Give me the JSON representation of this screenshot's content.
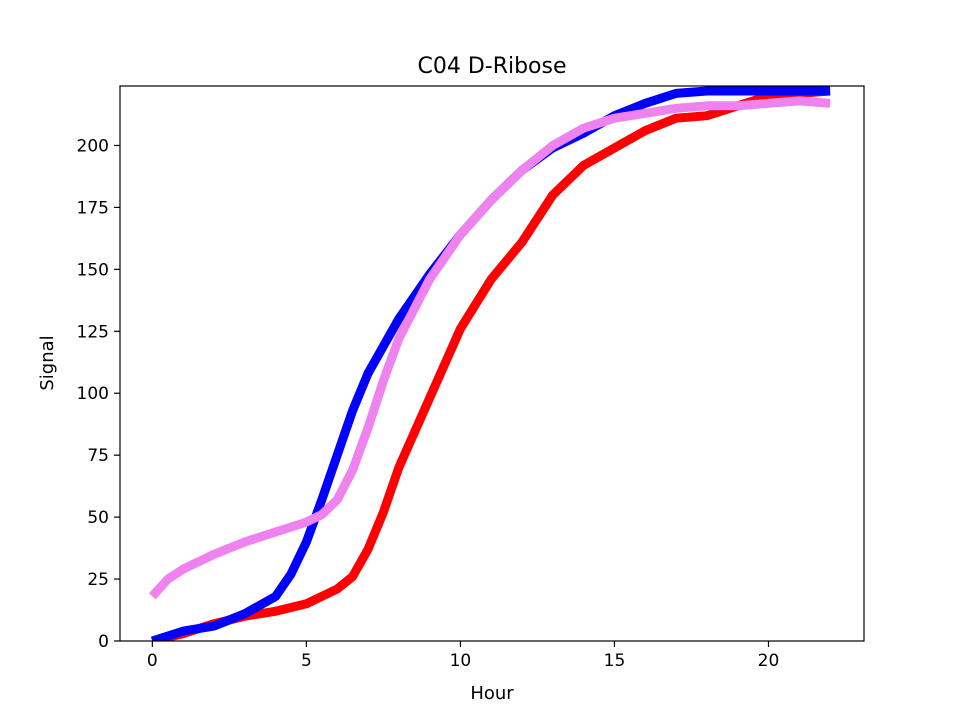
{
  "chart_data": {
    "type": "line",
    "title": "C04 D-Ribose",
    "xlabel": "Hour",
    "ylabel": "Signal",
    "xlim": [
      -1.05,
      23.1
    ],
    "ylim": [
      0,
      224
    ],
    "xticks": [
      0,
      5,
      10,
      15,
      20
    ],
    "yticks": [
      0,
      25,
      50,
      75,
      100,
      125,
      150,
      175,
      200
    ],
    "grid": false,
    "legend": "none",
    "series": [
      {
        "color": "#ff0000",
        "x": [
          0,
          1,
          2,
          3,
          4,
          5,
          6,
          6.5,
          7,
          7.5,
          8,
          9,
          10,
          11,
          12,
          13,
          14,
          15,
          16,
          17,
          18,
          19,
          20,
          21,
          22
        ],
        "y": [
          0,
          3,
          7,
          10,
          12,
          15,
          21,
          26,
          37,
          52,
          70,
          98,
          126,
          146,
          161,
          180,
          192,
          199,
          206,
          211,
          212,
          216,
          220,
          221,
          222
        ]
      },
      {
        "color": "#0000ff",
        "x": [
          0,
          1,
          2,
          3,
          4,
          4.5,
          5,
          5.5,
          6,
          6.5,
          7,
          8,
          9,
          10,
          11,
          12,
          13,
          14,
          15,
          16,
          17,
          18,
          19,
          20,
          21,
          22
        ],
        "y": [
          0,
          4,
          6,
          11,
          18,
          27,
          40,
          57,
          75,
          93,
          108,
          130,
          148,
          164,
          178,
          190,
          199,
          205,
          212,
          217,
          221,
          222,
          222,
          222,
          222,
          222
        ]
      },
      {
        "color": "#ee82ee",
        "x": [
          0,
          0.5,
          1,
          2,
          3,
          4,
          5,
          5.5,
          6,
          6.5,
          7,
          7.5,
          8,
          9,
          10,
          11,
          12,
          13,
          14,
          15,
          16,
          17,
          18,
          19,
          20,
          21,
          22
        ],
        "y": [
          18,
          25,
          29,
          35,
          40,
          44,
          48,
          51,
          57,
          69,
          86,
          105,
          122,
          146,
          164,
          178,
          190,
          200,
          207,
          211,
          213,
          215,
          216,
          216,
          217,
          218,
          217
        ]
      }
    ]
  }
}
